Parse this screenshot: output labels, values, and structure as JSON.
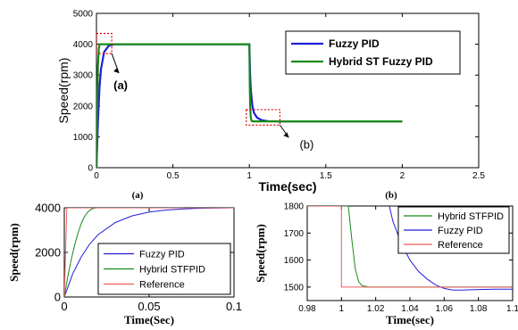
{
  "colors": {
    "fuzzy_pid": "#1f1fd6",
    "hybrid": "#188a18",
    "reference": "#f05a5a",
    "axis": "#000000",
    "callout_box": "#e00000"
  },
  "chart_data": [
    {
      "type": "line",
      "xlabel": "Time(sec)",
      "ylabel": "Speed(rpm)",
      "xlim": [
        0,
        2.5
      ],
      "ylim": [
        0,
        5000
      ],
      "xticks": [
        "0",
        "0.5",
        "1",
        "1.5",
        "2",
        "2.5"
      ],
      "yticks": [
        "0",
        "1000",
        "2000",
        "3000",
        "4000",
        "5000"
      ],
      "grid": false,
      "legend_placement": "top-right",
      "callouts": [
        {
          "label": "(a)",
          "x_range": [
            0.0,
            0.1
          ],
          "y_range": [
            3700,
            4350
          ]
        },
        {
          "label": "(b)",
          "x_range": [
            0.98,
            1.2
          ],
          "y_range": [
            1380,
            1880
          ]
        }
      ],
      "series": [
        {
          "name": "Fuzzy PID",
          "x": [
            0,
            0.01,
            0.02,
            0.03,
            0.05,
            0.08,
            0.12,
            0.2,
            0.5,
            1.0,
            1.005,
            1.01,
            1.02,
            1.03,
            1.05,
            1.08,
            1.12,
            1.2,
            1.5,
            2.0
          ],
          "y": [
            0,
            1500,
            2600,
            3200,
            3750,
            3950,
            4000,
            4000,
            4000,
            4000,
            3000,
            2500,
            2000,
            1780,
            1620,
            1540,
            1510,
            1500,
            1500,
            1500
          ]
        },
        {
          "name": "Hybrid ST Fuzzy PID",
          "x": [
            0,
            0.005,
            0.01,
            0.015,
            0.02,
            0.04,
            0.5,
            1.0,
            1.003,
            1.006,
            1.01,
            1.015,
            1.03,
            1.5,
            2.0
          ],
          "y": [
            0,
            2000,
            3300,
            3850,
            4000,
            4000,
            4000,
            4000,
            2600,
            1900,
            1600,
            1510,
            1500,
            1500,
            1500
          ]
        }
      ]
    },
    {
      "type": "line",
      "label": "(a)",
      "xlabel": "Time(Sec)",
      "ylabel": "Speed(rpm)",
      "xlim": [
        0,
        0.1
      ],
      "ylim": [
        0,
        4000
      ],
      "xticks": [
        "0",
        "0.05",
        "0.1"
      ],
      "yticks": [
        "0",
        "2000",
        "4000"
      ],
      "grid": false,
      "legend_placement": "bottom-right",
      "series": [
        {
          "name": "Fuzzy PID",
          "x": [
            0,
            0.005,
            0.01,
            0.015,
            0.02,
            0.03,
            0.04,
            0.05,
            0.06,
            0.07,
            0.08,
            0.1
          ],
          "y": [
            0,
            1050,
            1800,
            2380,
            2800,
            3340,
            3640,
            3810,
            3900,
            3950,
            3980,
            4000
          ]
        },
        {
          "name": "Hybrid STFPID",
          "x": [
            0,
            0.002,
            0.004,
            0.006,
            0.008,
            0.01,
            0.012,
            0.014,
            0.016,
            0.018,
            0.02,
            0.1
          ],
          "y": [
            0,
            900,
            1650,
            2300,
            2850,
            3300,
            3620,
            3830,
            3940,
            3990,
            4000,
            4000
          ]
        },
        {
          "name": "Reference",
          "x": [
            0,
            0.0015,
            0.1
          ],
          "y": [
            0,
            4000,
            4000
          ]
        }
      ]
    },
    {
      "type": "line",
      "label": "(b)",
      "xlabel": "Time(sec)",
      "ylabel": "Speed(rpm)",
      "xlim": [
        0.98,
        1.1
      ],
      "ylim": [
        1450,
        1800
      ],
      "xticks": [
        "0.98",
        "1",
        "1.02",
        "1.04",
        "1.06",
        "1.08",
        "1.1"
      ],
      "yticks": [
        "1500",
        "1600",
        "1700",
        "1800"
      ],
      "grid": false,
      "legend_placement": "top-right",
      "series": [
        {
          "name": "Hybrid STFPID",
          "x": [
            1.0,
            1.002,
            1.004,
            1.006,
            1.008,
            1.01,
            1.012,
            1.016,
            1.02,
            1.1
          ],
          "y": [
            1800,
            1800,
            1800,
            1680,
            1570,
            1520,
            1505,
            1500,
            1500,
            1500
          ]
        },
        {
          "name": "Fuzzy PID",
          "x": [
            1.028,
            1.03,
            1.035,
            1.04,
            1.045,
            1.05,
            1.055,
            1.06,
            1.065,
            1.07,
            1.08,
            1.09,
            1.1
          ],
          "y": [
            1800,
            1745,
            1660,
            1600,
            1558,
            1530,
            1508,
            1495,
            1489,
            1489,
            1491,
            1492,
            1492
          ]
        },
        {
          "name": "Reference",
          "x": [
            0.98,
            1.0,
            1.0,
            1.1
          ],
          "y": [
            1800,
            1800,
            1500,
            1500
          ]
        }
      ]
    }
  ],
  "subplot_labels": [
    "(a)",
    "(b)"
  ]
}
